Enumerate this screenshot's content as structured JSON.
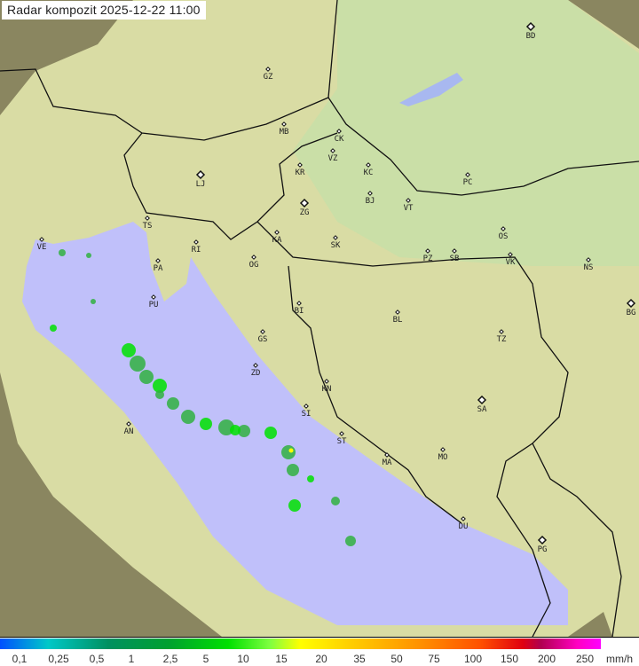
{
  "header": {
    "title": "Radar kompozit  2025-12-22   11:00"
  },
  "legend": {
    "labels": [
      "0,1",
      "0,25",
      "0,5",
      "1",
      "2,5",
      "5",
      "10",
      "15",
      "20",
      "35",
      "50",
      "75",
      "100",
      "150",
      "200",
      "250"
    ],
    "unit": "mm/h"
  },
  "cities": [
    "GZ",
    "BD",
    "MB",
    "CK",
    "VZ",
    "KR",
    "KC",
    "PC",
    "LJ",
    "BJ",
    "VT",
    "ZG",
    "TS",
    "VE",
    "RI",
    "KA",
    "SK",
    "OS",
    "PA",
    "OG",
    "PZ",
    "SB",
    "VK",
    "NS",
    "PU",
    "BG",
    "BI",
    "BL",
    "GS",
    "TZ",
    "ZD",
    "KN",
    "SA",
    "AN",
    "SI",
    "ST",
    "MO",
    "MA",
    "DU",
    "PG"
  ],
  "colors": {
    "sea": "#c0c0fa",
    "land": "#d9dca4",
    "outside_coverage": "#8a8660",
    "rain_low": "#30b040",
    "rain_mid": "#00e000",
    "rain_high": "#ffff00"
  }
}
